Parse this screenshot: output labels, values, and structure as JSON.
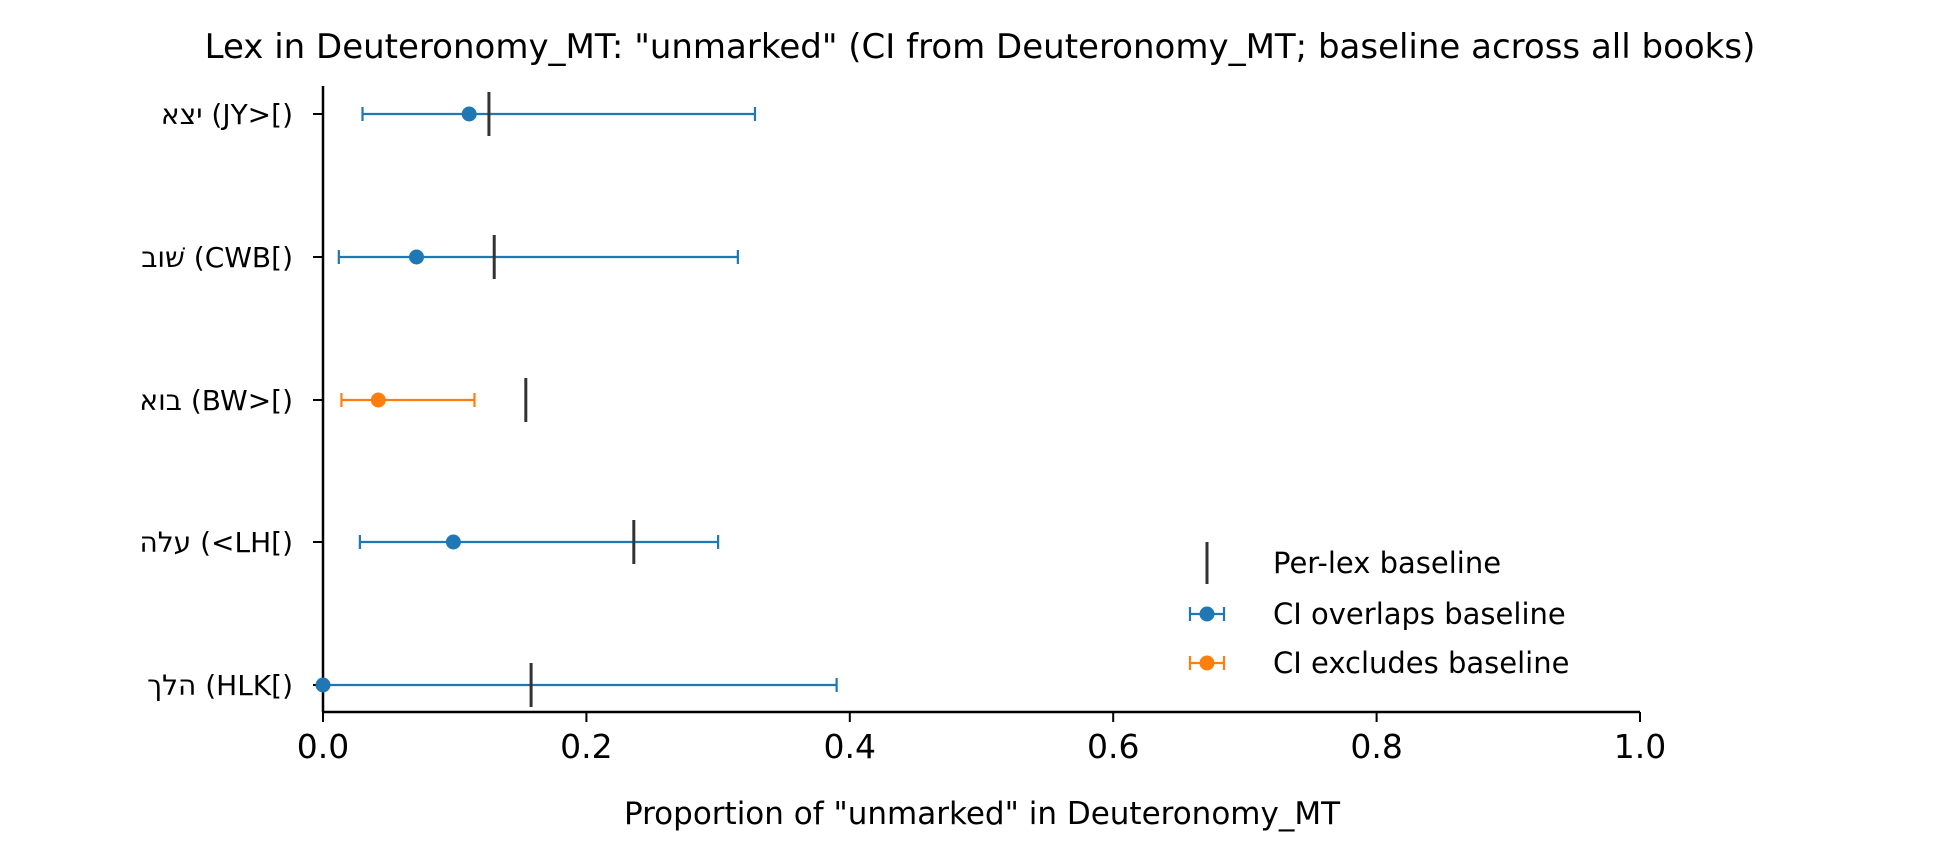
{
  "chart_data": {
    "type": "errorbar",
    "title": "Lex in Deuteronomy_MT: \"unmarked\" (CI from Deuteronomy_MT; baseline across all books)",
    "xlabel": "Proportion of \"unmarked\" in Deuteronomy_MT",
    "ylabel": "",
    "xlim": [
      0.0,
      1.0
    ],
    "x_ticks": [
      "0.0",
      "0.2",
      "0.4",
      "0.6",
      "0.8",
      "1.0"
    ],
    "x_tick_values": [
      0.0,
      0.2,
      0.4,
      0.6,
      0.8,
      1.0
    ],
    "grid": false,
    "legend_position": "lower-right",
    "categories": [
      "יצא (JY>[)",
      "שׁוב (CWB[)",
      "בוא (BW>[)",
      "עלה (<LH[)",
      "הלך (HLK[)"
    ],
    "points": [
      {
        "label": "יצא (JY>[)",
        "value": 0.111,
        "ci_low": 0.03,
        "ci_high": 0.328,
        "baseline": 0.126,
        "group": "overlap"
      },
      {
        "label": "שׁוב (CWB[)",
        "value": 0.071,
        "ci_low": 0.012,
        "ci_high": 0.315,
        "baseline": 0.13,
        "group": "overlap"
      },
      {
        "label": "בוא (BW>[)",
        "value": 0.042,
        "ci_low": 0.014,
        "ci_high": 0.115,
        "baseline": 0.154,
        "group": "exclude"
      },
      {
        "label": "עלה (<LH[)",
        "value": 0.099,
        "ci_low": 0.028,
        "ci_high": 0.3,
        "baseline": 0.236,
        "group": "overlap"
      },
      {
        "label": "הלך (HLK[)",
        "value": 0.0,
        "ci_low": 0.0,
        "ci_high": 0.39,
        "baseline": 0.158,
        "group": "overlap"
      }
    ],
    "legend": [
      {
        "key": "baseline",
        "label": "Per-lex baseline"
      },
      {
        "key": "overlap",
        "label": "CI overlaps baseline"
      },
      {
        "key": "exclude",
        "label": "CI excludes baseline"
      }
    ],
    "colors": {
      "overlap": "#1f77b4",
      "exclude": "#ff7f0e",
      "baseline": "#333333"
    }
  }
}
